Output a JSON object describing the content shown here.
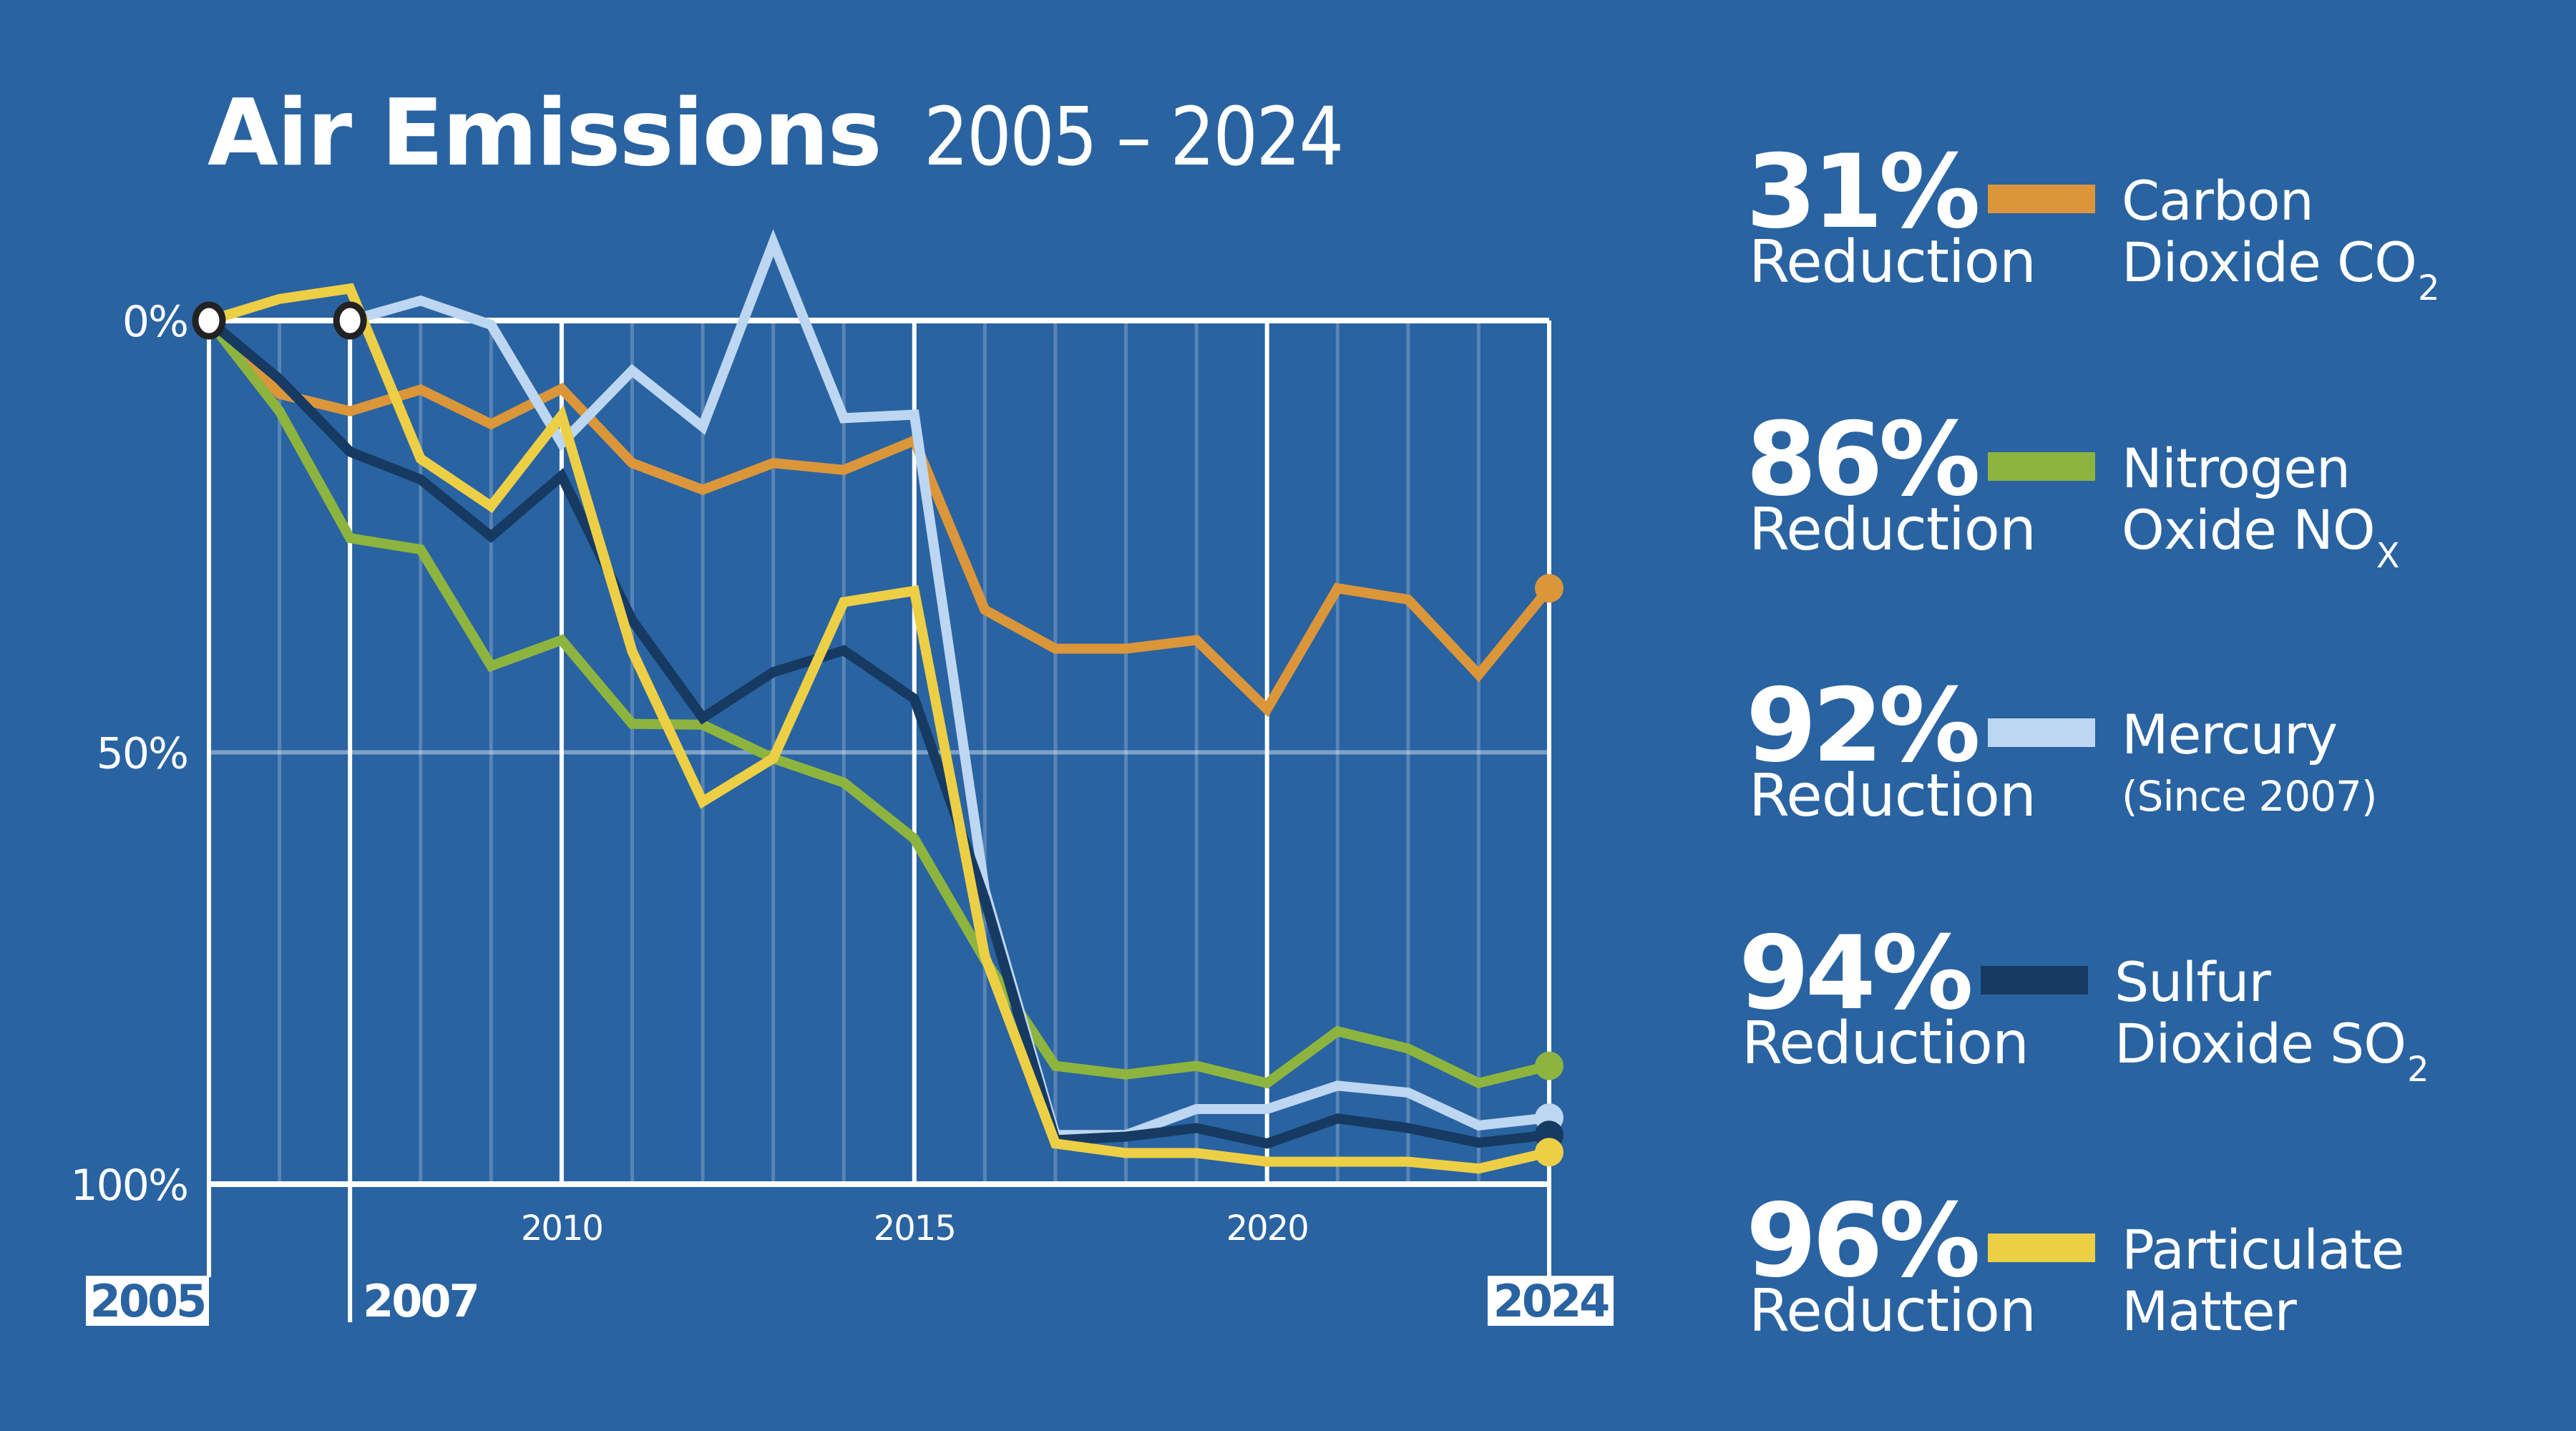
{
  "title": {
    "main": "Air Emissions",
    "range": "2005 – 2024"
  },
  "colors": {
    "background": "#2963A1",
    "co2": "#DB963A",
    "nox": "#8DB43F",
    "mercury": "#BDD6F1",
    "so2": "#163A62",
    "pm": "#EDCF46"
  },
  "legend": [
    {
      "percent": "31%",
      "reduction": "Reduction",
      "line1": "Carbon",
      "line2": "Dioxide CO",
      "sub": "2",
      "color": "#DB963A"
    },
    {
      "percent": "86%",
      "reduction": "Reduction",
      "line1": "Nitrogen",
      "line2": "Oxide NO",
      "sub": "X",
      "color": "#8DB43F"
    },
    {
      "percent": "92%",
      "reduction": "Reduction",
      "line1": "Mercury",
      "line2": "(Since 2007)",
      "sub": "",
      "color": "#BDD6F1"
    },
    {
      "percent": "94%",
      "reduction": "Reduction",
      "line1": "Sulfur",
      "line2": "Dioxide SO",
      "sub": "2",
      "color": "#163A62"
    },
    {
      "percent": "96%",
      "reduction": "Reduction",
      "line1": "Particulate",
      "line2": "Matter",
      "sub": "",
      "color": "#EDCF46"
    }
  ],
  "chart_data": {
    "type": "line",
    "title": "Air Emissions 2005 – 2024",
    "xlabel": "",
    "ylabel": "",
    "x": [
      2005,
      2006,
      2007,
      2008,
      2009,
      2010,
      2011,
      2012,
      2013,
      2014,
      2015,
      2016,
      2017,
      2018,
      2019,
      2020,
      2021,
      2022,
      2023,
      2024
    ],
    "xlim": [
      2005,
      2024
    ],
    "ylim": [
      0,
      100
    ],
    "y_inverted": true,
    "y_ticks": [
      "0%",
      "50%",
      "100%"
    ],
    "y_tick_values": [
      0,
      50,
      100
    ],
    "x_ticks": [
      "2010",
      "2015",
      "2020"
    ],
    "x_tick_values": [
      2010,
      2015,
      2020
    ],
    "x_highlight_labels": [
      {
        "label": "2005",
        "value": 2005,
        "boxed": true
      },
      {
        "label": "2007",
        "value": 2007,
        "boxed": false
      },
      {
        "label": "2024",
        "value": 2024,
        "boxed": true
      }
    ],
    "grid": true,
    "legend_position": "right",
    "series": [
      {
        "name": "Carbon Dioxide CO2",
        "key": "co2",
        "color": "#DB963A",
        "start_year": 2005,
        "values": [
          0,
          8.5,
          10.5,
          8,
          12,
          7.9,
          16.5,
          19.6,
          16.5,
          17.3,
          13.9,
          33.5,
          38,
          38,
          37,
          45,
          31,
          32.3,
          41,
          31
        ]
      },
      {
        "name": "Nitrogen Oxide NOX",
        "key": "nox",
        "color": "#8DB43F",
        "start_year": 2005,
        "values": [
          0,
          10.5,
          25.2,
          26.5,
          40,
          37,
          46.7,
          46.8,
          50.7,
          53.5,
          60,
          74,
          86.3,
          87.3,
          86.3,
          88.3,
          82.3,
          84.3,
          88.3,
          86.3
        ]
      },
      {
        "name": "Mercury (Since 2007)",
        "key": "mercury",
        "color": "#BDD6F1",
        "start_year": 2007,
        "values": [
          null,
          null,
          0,
          -2.3,
          0.5,
          14.2,
          5.8,
          12.3,
          -9,
          11.3,
          10.9,
          66,
          94.3,
          94.3,
          91.3,
          91.3,
          88.6,
          89.4,
          93.2,
          92.3
        ]
      },
      {
        "name": "Sulfur Dioxide SO2",
        "key": "so2",
        "color": "#163A62",
        "start_year": 2005,
        "values": [
          0,
          6.8,
          15.2,
          18.4,
          25,
          18,
          34.7,
          46,
          40.7,
          38.2,
          43.8,
          67,
          94.9,
          94.5,
          93.5,
          95.3,
          92.4,
          93.5,
          95.2,
          94.3
        ]
      },
      {
        "name": "Particulate Matter",
        "key": "pm",
        "color": "#EDCF46",
        "start_year": 2005,
        "values": [
          0,
          -2.5,
          -3.7,
          16,
          21.5,
          11,
          38.3,
          55.7,
          50.7,
          32.6,
          31.3,
          73.6,
          95.3,
          96.4,
          96.4,
          97.4,
          97.4,
          97.4,
          98.2,
          96.3
        ]
      }
    ],
    "start_markers": [
      {
        "year": 2005,
        "value": 0,
        "style": "open-circle"
      },
      {
        "year": 2007,
        "value": 0,
        "style": "open-circle"
      }
    ],
    "end_markers": "filled-circle at 2024 for each series"
  }
}
